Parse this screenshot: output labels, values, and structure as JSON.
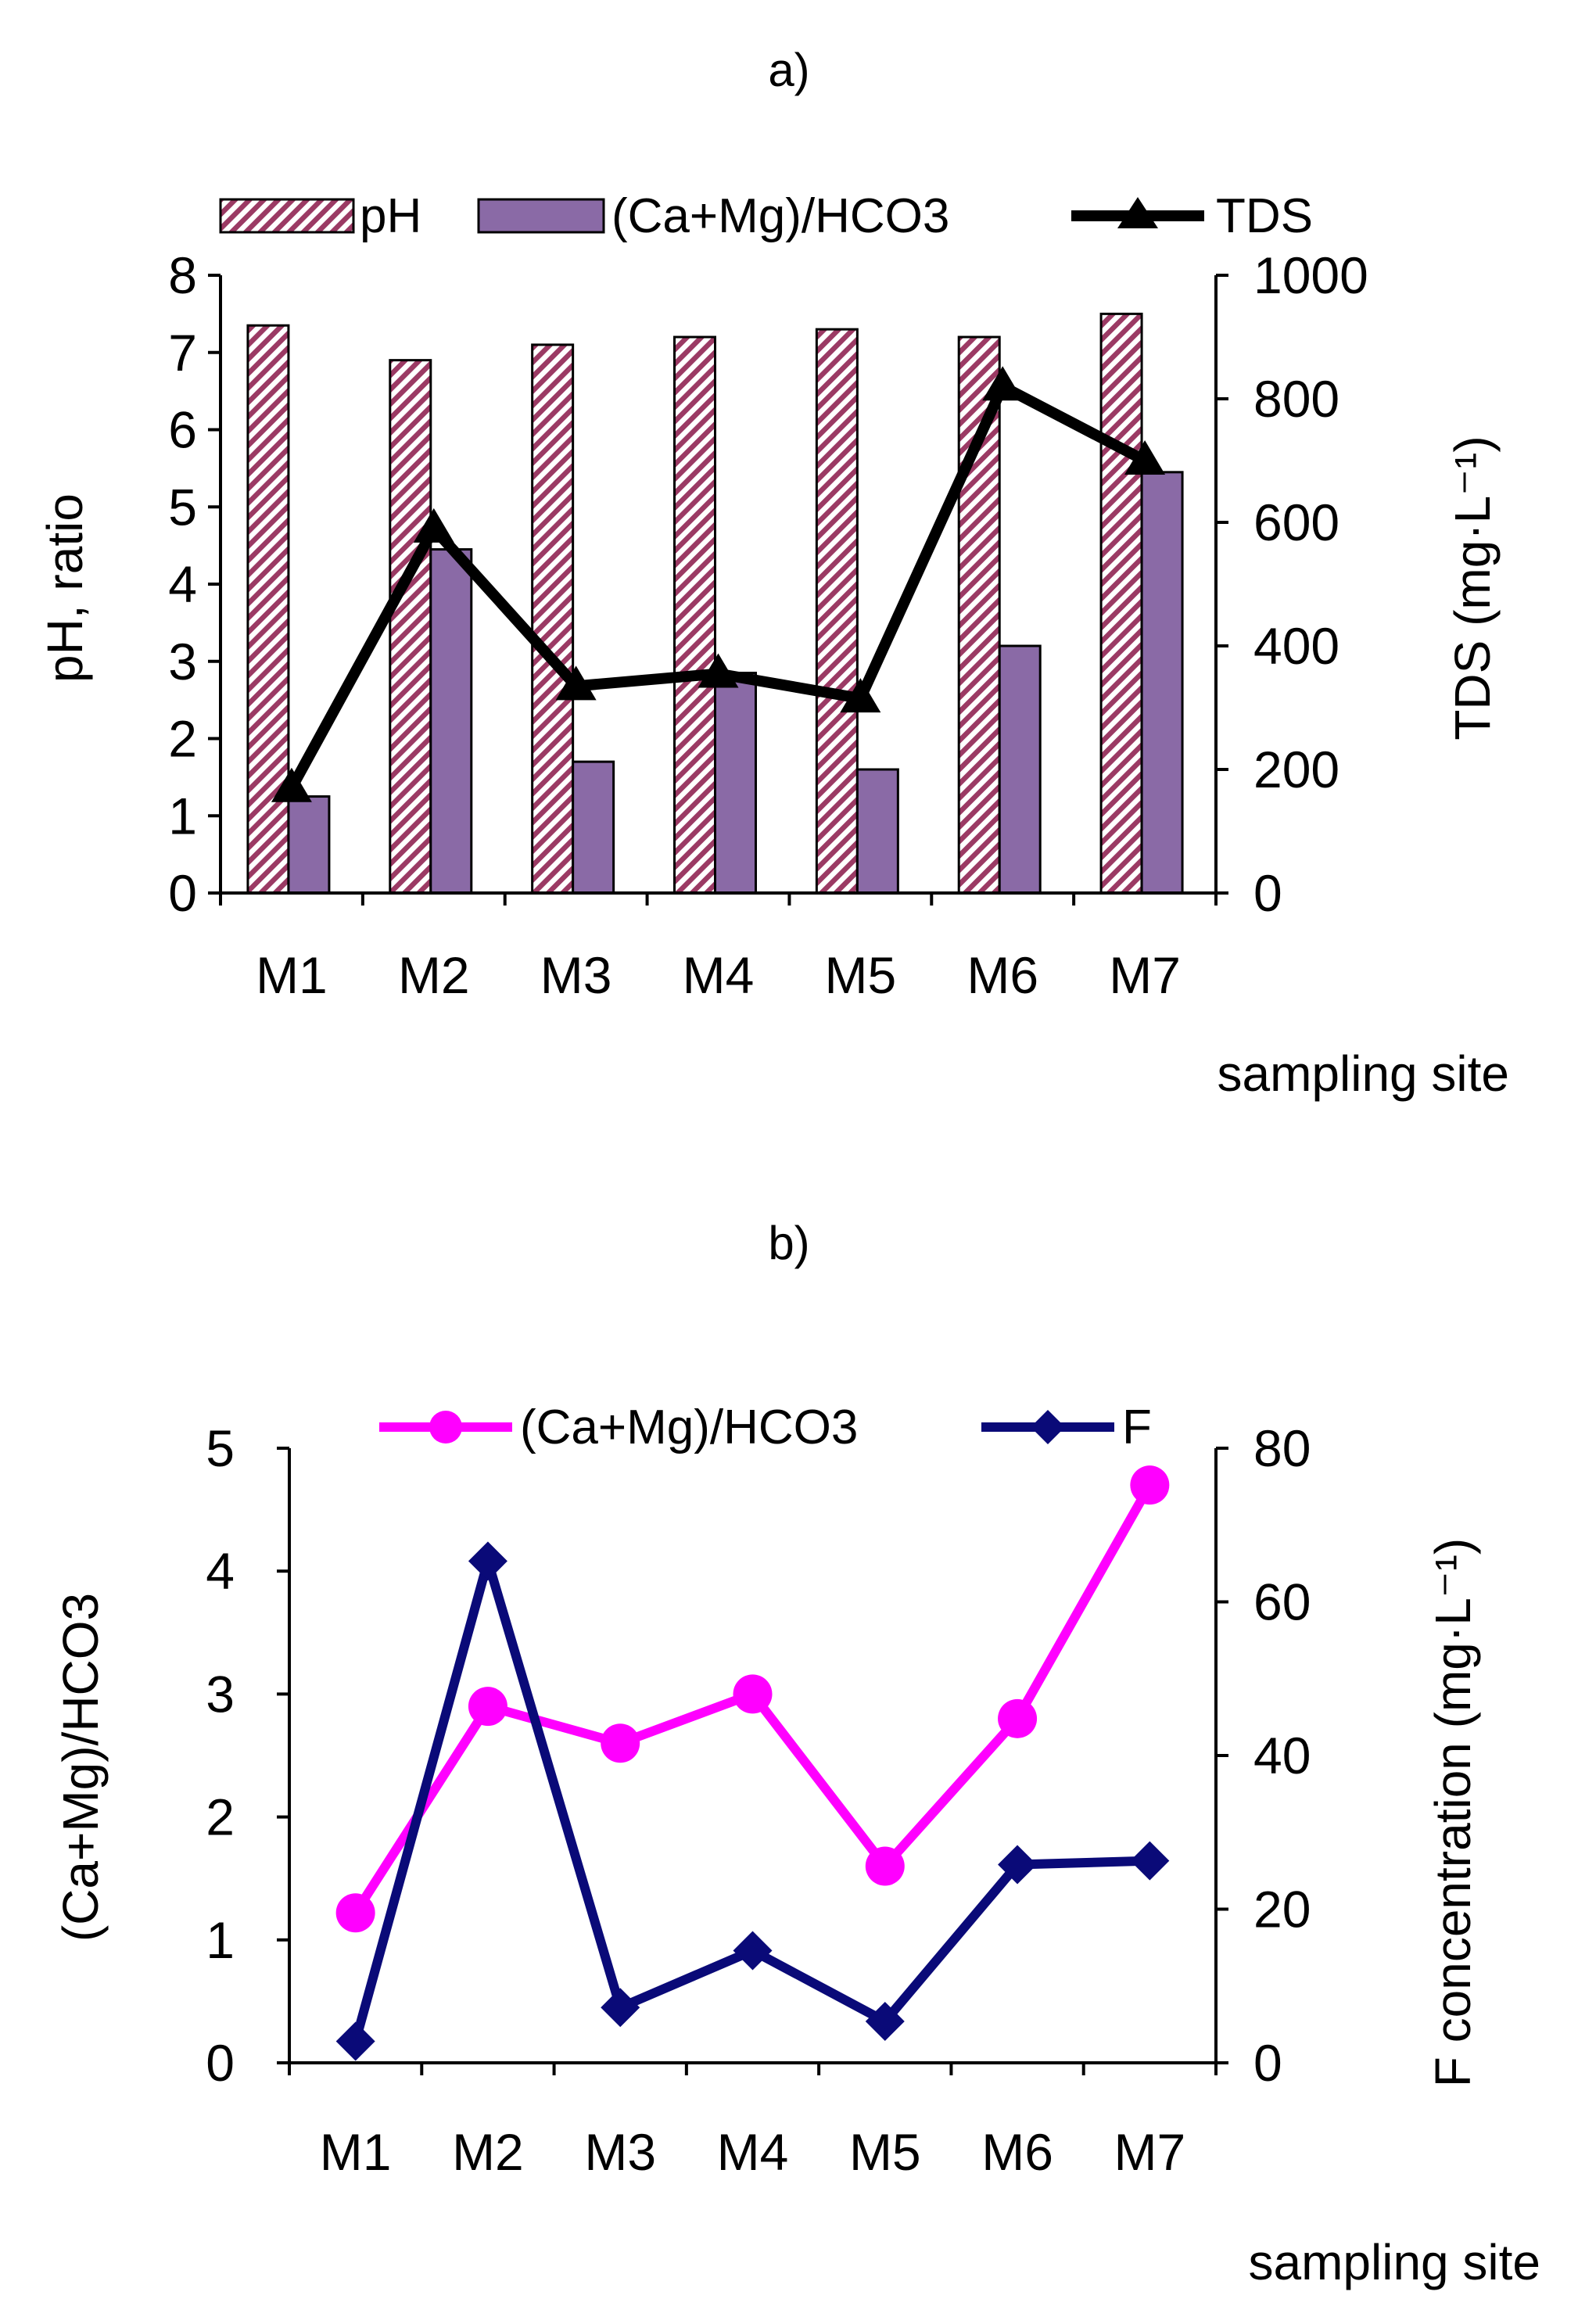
{
  "chart_data": [
    {
      "panel": "a)",
      "type": "bar",
      "title": "a)",
      "categories": [
        "M1",
        "M2",
        "M3",
        "M4",
        "M5",
        "M6",
        "M7"
      ],
      "xlabel": "sampling site",
      "ylabel": "pH, ratio",
      "ylim": [
        0,
        8
      ],
      "yticks": [
        "0",
        "1",
        "2",
        "3",
        "4",
        "5",
        "6",
        "7",
        "8"
      ],
      "y2label": "TDS (mg·L⁻¹)",
      "y2lim": [
        0,
        1000
      ],
      "y2ticks": [
        "0",
        "200",
        "400",
        "600",
        "800",
        "1000"
      ],
      "legend_position": "top",
      "series": [
        {
          "name": "pH",
          "kind": "bar",
          "pattern": "hatched",
          "color": "#9b3a64",
          "values": [
            7.35,
            6.9,
            7.1,
            7.2,
            7.3,
            7.2,
            7.5
          ]
        },
        {
          "name": "(Ca+Mg)/HCO3",
          "kind": "bar",
          "color": "#8a6aa6",
          "values": [
            1.25,
            4.45,
            1.7,
            2.85,
            1.6,
            3.2,
            5.45
          ]
        },
        {
          "name": "TDS",
          "kind": "line",
          "marker": "triangle",
          "axis": "right",
          "color": "#000000",
          "values": [
            170,
            590,
            335,
            355,
            315,
            820,
            700
          ]
        }
      ]
    },
    {
      "panel": "b)",
      "type": "line",
      "title": "b)",
      "categories": [
        "M1",
        "M2",
        "M3",
        "M4",
        "M5",
        "M6",
        "M7"
      ],
      "xlabel": "sampling site",
      "ylabel": "(Ca+Mg)/HCO3",
      "ylim": [
        0,
        5
      ],
      "yticks": [
        "0",
        "1",
        "2",
        "3",
        "4",
        "5"
      ],
      "y2label": "F concentration (mg·L⁻¹)",
      "y2lim": [
        0,
        80
      ],
      "y2ticks": [
        "0",
        "20",
        "40",
        "60",
        "80"
      ],
      "legend_position": "top",
      "series": [
        {
          "name": "(Ca+Mg)/HCO3",
          "kind": "line",
          "marker": "circle",
          "axis": "left",
          "color": "#ff00ff",
          "values": [
            1.22,
            2.9,
            2.6,
            3.0,
            1.6,
            2.8,
            4.7
          ]
        },
        {
          "name": "F",
          "kind": "line",
          "marker": "diamond",
          "axis": "right",
          "color": "#0a0a78",
          "values": [
            2.8,
            65.3,
            7.2,
            14.6,
            5.4,
            25.8,
            26.3
          ]
        }
      ]
    }
  ]
}
